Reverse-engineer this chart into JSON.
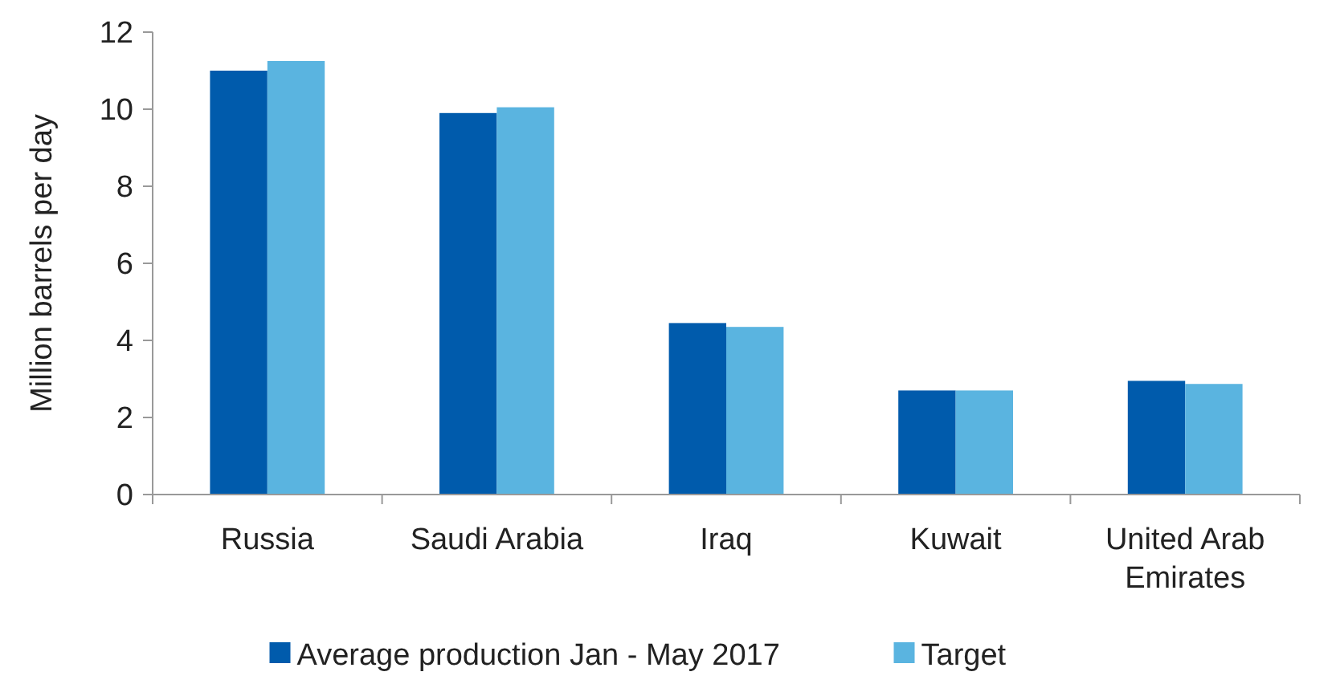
{
  "chart_data": {
    "type": "bar",
    "ylabel": "Million barrels per day",
    "categories": [
      "Russia",
      "Saudi Arabia",
      "Iraq",
      "Kuwait",
      "United Arab Emirates"
    ],
    "series": [
      {
        "name": "Average production Jan - May 2017",
        "color": "#005bac",
        "values": [
          11.0,
          9.9,
          4.45,
          2.7,
          2.95
        ]
      },
      {
        "name": "Target",
        "color": "#5ab4e0",
        "values": [
          11.25,
          10.05,
          4.35,
          2.7,
          2.87
        ]
      }
    ],
    "ylim": [
      0,
      12
    ],
    "yticks": [
      0,
      2,
      4,
      6,
      8,
      10,
      12
    ],
    "grid": false,
    "legend": "bottom"
  }
}
